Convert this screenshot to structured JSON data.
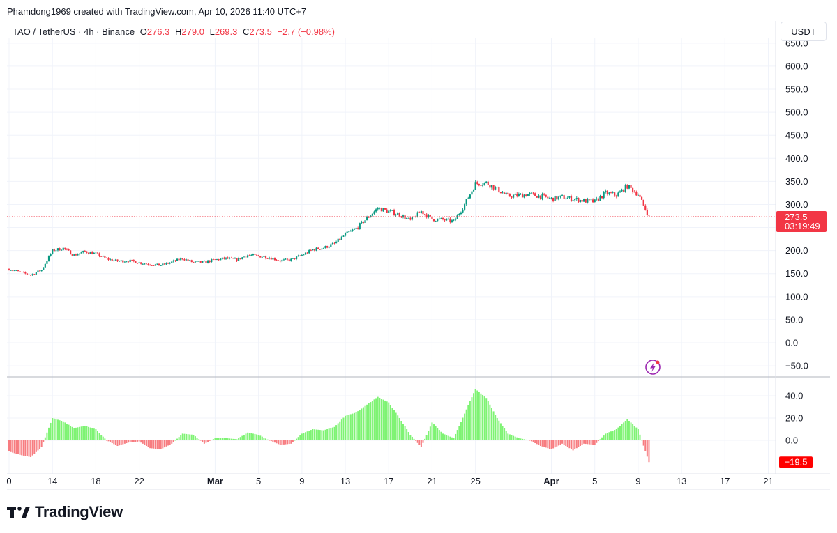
{
  "header": {
    "text": "Phamdong1969 created with TradingView.com, Apr 10, 2026 11:40 UTC+7"
  },
  "legend": {
    "symbol": "TAO / TetherUS · 4h · Binance",
    "o_label": "O",
    "o_value": "276.3",
    "h_label": "H",
    "h_value": "279.0",
    "l_label": "L",
    "l_value": "269.3",
    "c_label": "C",
    "c_value": "273.5",
    "change": "−2.7 (−0.98%)"
  },
  "currency_button": "USDT",
  "brand": {
    "name": "TradingView"
  },
  "colors": {
    "up": "#089981",
    "down": "#f23645",
    "hist_up": "#7ef373",
    "hist_down": "#f77c80",
    "grid": "#f0f3fa"
  },
  "chart_data": [
    {
      "type": "candlestick",
      "symbol": "TAO / TetherUS",
      "interval": "4h",
      "exchange": "Binance",
      "ylim": [
        -50,
        650
      ],
      "y_ticks": [
        "650.0",
        "600.0",
        "550.0",
        "500.0",
        "450.0",
        "400.0",
        "350.0",
        "300.0",
        "250.0",
        "200.0",
        "150.0",
        "100.0",
        "50.0",
        "0.0",
        "−50.0"
      ],
      "x_ticks": [
        "0",
        "14",
        "18",
        "22",
        "Mar",
        "5",
        "9",
        "13",
        "17",
        "21",
        "25",
        "Apr",
        "5",
        "9",
        "13",
        "17",
        "21"
      ],
      "x_dates": [
        "2026-02-10",
        "2026-02-14",
        "2026-02-18",
        "2026-02-22",
        "2026-03-01",
        "2026-03-05",
        "2026-03-09",
        "2026-03-13",
        "2026-03-17",
        "2026-03-21",
        "2026-03-25",
        "2026-04-01",
        "2026-04-05",
        "2026-04-09",
        "2026-04-13",
        "2026-04-17",
        "2026-04-21"
      ],
      "price_series": [
        [
          "2026-02-10",
          160
        ],
        [
          "2026-02-11",
          153
        ],
        [
          "2026-02-12",
          147
        ],
        [
          "2026-02-13",
          158
        ],
        [
          "2026-02-14",
          200
        ],
        [
          "2026-02-15",
          205
        ],
        [
          "2026-02-16",
          190
        ],
        [
          "2026-02-17",
          198
        ],
        [
          "2026-02-18",
          193
        ],
        [
          "2026-02-19",
          182
        ],
        [
          "2026-02-20",
          177
        ],
        [
          "2026-02-21",
          178
        ],
        [
          "2026-02-22",
          174
        ],
        [
          "2026-02-23",
          170
        ],
        [
          "2026-02-24",
          168
        ],
        [
          "2026-02-25",
          175
        ],
        [
          "2026-02-26",
          183
        ],
        [
          "2026-02-27",
          174
        ],
        [
          "2026-02-28",
          175
        ],
        [
          "2026-03-01",
          180
        ],
        [
          "2026-03-02",
          183
        ],
        [
          "2026-03-03",
          180
        ],
        [
          "2026-03-04",
          190
        ],
        [
          "2026-03-05",
          188
        ],
        [
          "2026-03-06",
          185
        ],
        [
          "2026-03-07",
          178
        ],
        [
          "2026-03-08",
          180
        ],
        [
          "2026-03-09",
          190
        ],
        [
          "2026-03-10",
          202
        ],
        [
          "2026-03-11",
          206
        ],
        [
          "2026-03-12",
          215
        ],
        [
          "2026-03-13",
          235
        ],
        [
          "2026-03-14",
          248
        ],
        [
          "2026-03-15",
          270
        ],
        [
          "2026-03-16",
          292
        ],
        [
          "2026-03-17",
          285
        ],
        [
          "2026-03-18",
          278
        ],
        [
          "2026-03-19",
          265
        ],
        [
          "2026-03-20",
          285
        ],
        [
          "2026-03-21",
          268
        ],
        [
          "2026-03-22",
          267
        ],
        [
          "2026-03-23",
          263
        ],
        [
          "2026-03-24",
          300
        ],
        [
          "2026-03-25",
          345
        ],
        [
          "2026-03-26",
          347
        ],
        [
          "2026-03-27",
          333
        ],
        [
          "2026-03-28",
          318
        ],
        [
          "2026-03-29",
          320
        ],
        [
          "2026-03-30",
          322
        ],
        [
          "2026-03-31",
          318
        ],
        [
          "2026-04-01",
          312
        ],
        [
          "2026-04-02",
          316
        ],
        [
          "2026-04-03",
          312
        ],
        [
          "2026-04-04",
          308
        ],
        [
          "2026-04-05",
          306
        ],
        [
          "2026-04-06",
          325
        ],
        [
          "2026-04-07",
          320
        ],
        [
          "2026-04-08",
          340
        ],
        [
          "2026-04-09",
          322
        ],
        [
          "2026-04-10",
          273.5
        ]
      ],
      "last_price": "273.5",
      "countdown": "03:19:49"
    },
    {
      "type": "histogram",
      "ylim": [
        -25,
        55
      ],
      "y_ticks": [
        "40.0",
        "20.0",
        "0.0"
      ],
      "values": [
        [
          "2026-02-10",
          -10
        ],
        [
          "2026-02-11",
          -13
        ],
        [
          "2026-02-12",
          -15
        ],
        [
          "2026-02-13",
          -6
        ],
        [
          "2026-02-14",
          20
        ],
        [
          "2026-02-15",
          17
        ],
        [
          "2026-02-16",
          11
        ],
        [
          "2026-02-17",
          13
        ],
        [
          "2026-02-18",
          10
        ],
        [
          "2026-02-19",
          0
        ],
        [
          "2026-02-20",
          -5
        ],
        [
          "2026-02-21",
          -2
        ],
        [
          "2026-02-22",
          -1
        ],
        [
          "2026-02-23",
          -7
        ],
        [
          "2026-02-24",
          -8
        ],
        [
          "2026-02-25",
          -3
        ],
        [
          "2026-02-26",
          6
        ],
        [
          "2026-02-27",
          5
        ],
        [
          "2026-02-28",
          -3
        ],
        [
          "2026-03-01",
          2
        ],
        [
          "2026-03-02",
          2
        ],
        [
          "2026-03-03",
          1
        ],
        [
          "2026-03-04",
          7
        ],
        [
          "2026-03-05",
          5
        ],
        [
          "2026-03-06",
          0
        ],
        [
          "2026-03-07",
          -4
        ],
        [
          "2026-03-08",
          -3
        ],
        [
          "2026-03-09",
          6
        ],
        [
          "2026-03-10",
          10
        ],
        [
          "2026-03-11",
          9
        ],
        [
          "2026-03-12",
          12
        ],
        [
          "2026-03-13",
          22
        ],
        [
          "2026-03-14",
          25
        ],
        [
          "2026-03-15",
          32
        ],
        [
          "2026-03-16",
          39
        ],
        [
          "2026-03-17",
          34
        ],
        [
          "2026-03-18",
          20
        ],
        [
          "2026-03-19",
          5
        ],
        [
          "2026-03-20",
          -6
        ],
        [
          "2026-03-21",
          16
        ],
        [
          "2026-03-22",
          6
        ],
        [
          "2026-03-23",
          2
        ],
        [
          "2026-03-24",
          24
        ],
        [
          "2026-03-25",
          46
        ],
        [
          "2026-03-26",
          38
        ],
        [
          "2026-03-27",
          20
        ],
        [
          "2026-03-28",
          6
        ],
        [
          "2026-03-29",
          2
        ],
        [
          "2026-03-30",
          0
        ],
        [
          "2026-03-31",
          -5
        ],
        [
          "2026-04-01",
          -8
        ],
        [
          "2026-04-02",
          -3
        ],
        [
          "2026-04-03",
          -9
        ],
        [
          "2026-04-04",
          -3
        ],
        [
          "2026-04-05",
          -4
        ],
        [
          "2026-04-06",
          6
        ],
        [
          "2026-04-07",
          10
        ],
        [
          "2026-04-08",
          19
        ],
        [
          "2026-04-09",
          10
        ],
        [
          "2026-04-10",
          -19.5
        ]
      ],
      "last_value": "−19.5"
    }
  ]
}
